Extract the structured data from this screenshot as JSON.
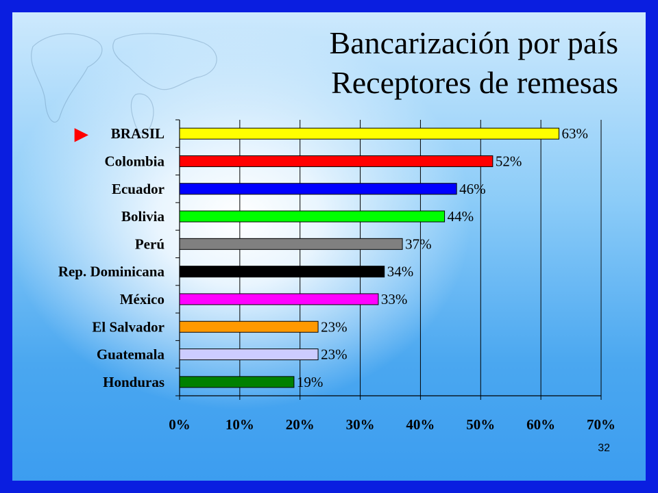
{
  "slide": {
    "title_line1": "Bancarización por país",
    "title_line2": "Receptores de remesas",
    "page_number": "32",
    "border_color": "#0a1ee0"
  },
  "chart_data": {
    "type": "bar",
    "orientation": "horizontal",
    "categories": [
      "BRASIL",
      "Colombia",
      "Ecuador",
      "Bolivia",
      "Perú",
      "Rep. Dominicana",
      "México",
      "El Salvador",
      "Guatemala",
      "Honduras"
    ],
    "values": [
      63,
      52,
      46,
      44,
      37,
      34,
      33,
      23,
      23,
      19
    ],
    "data_labels": [
      "63%",
      "52%",
      "46%",
      "44%",
      "37%",
      "34%",
      "33%",
      "23%",
      "23%",
      "19%"
    ],
    "colors": [
      "#ffff00",
      "#ff0000",
      "#0000ff",
      "#00ff00",
      "#808080",
      "#000000",
      "#ff00ff",
      "#ff9900",
      "#ccccff",
      "#008000"
    ],
    "xlim": [
      0,
      70
    ],
    "x_ticks": [
      "0%",
      "10%",
      "20%",
      "30%",
      "40%",
      "50%",
      "60%",
      "70%"
    ],
    "grid": true,
    "highlight_marker": "►",
    "highlight_category": "BRASIL",
    "highlight_color": "#ff0000"
  }
}
